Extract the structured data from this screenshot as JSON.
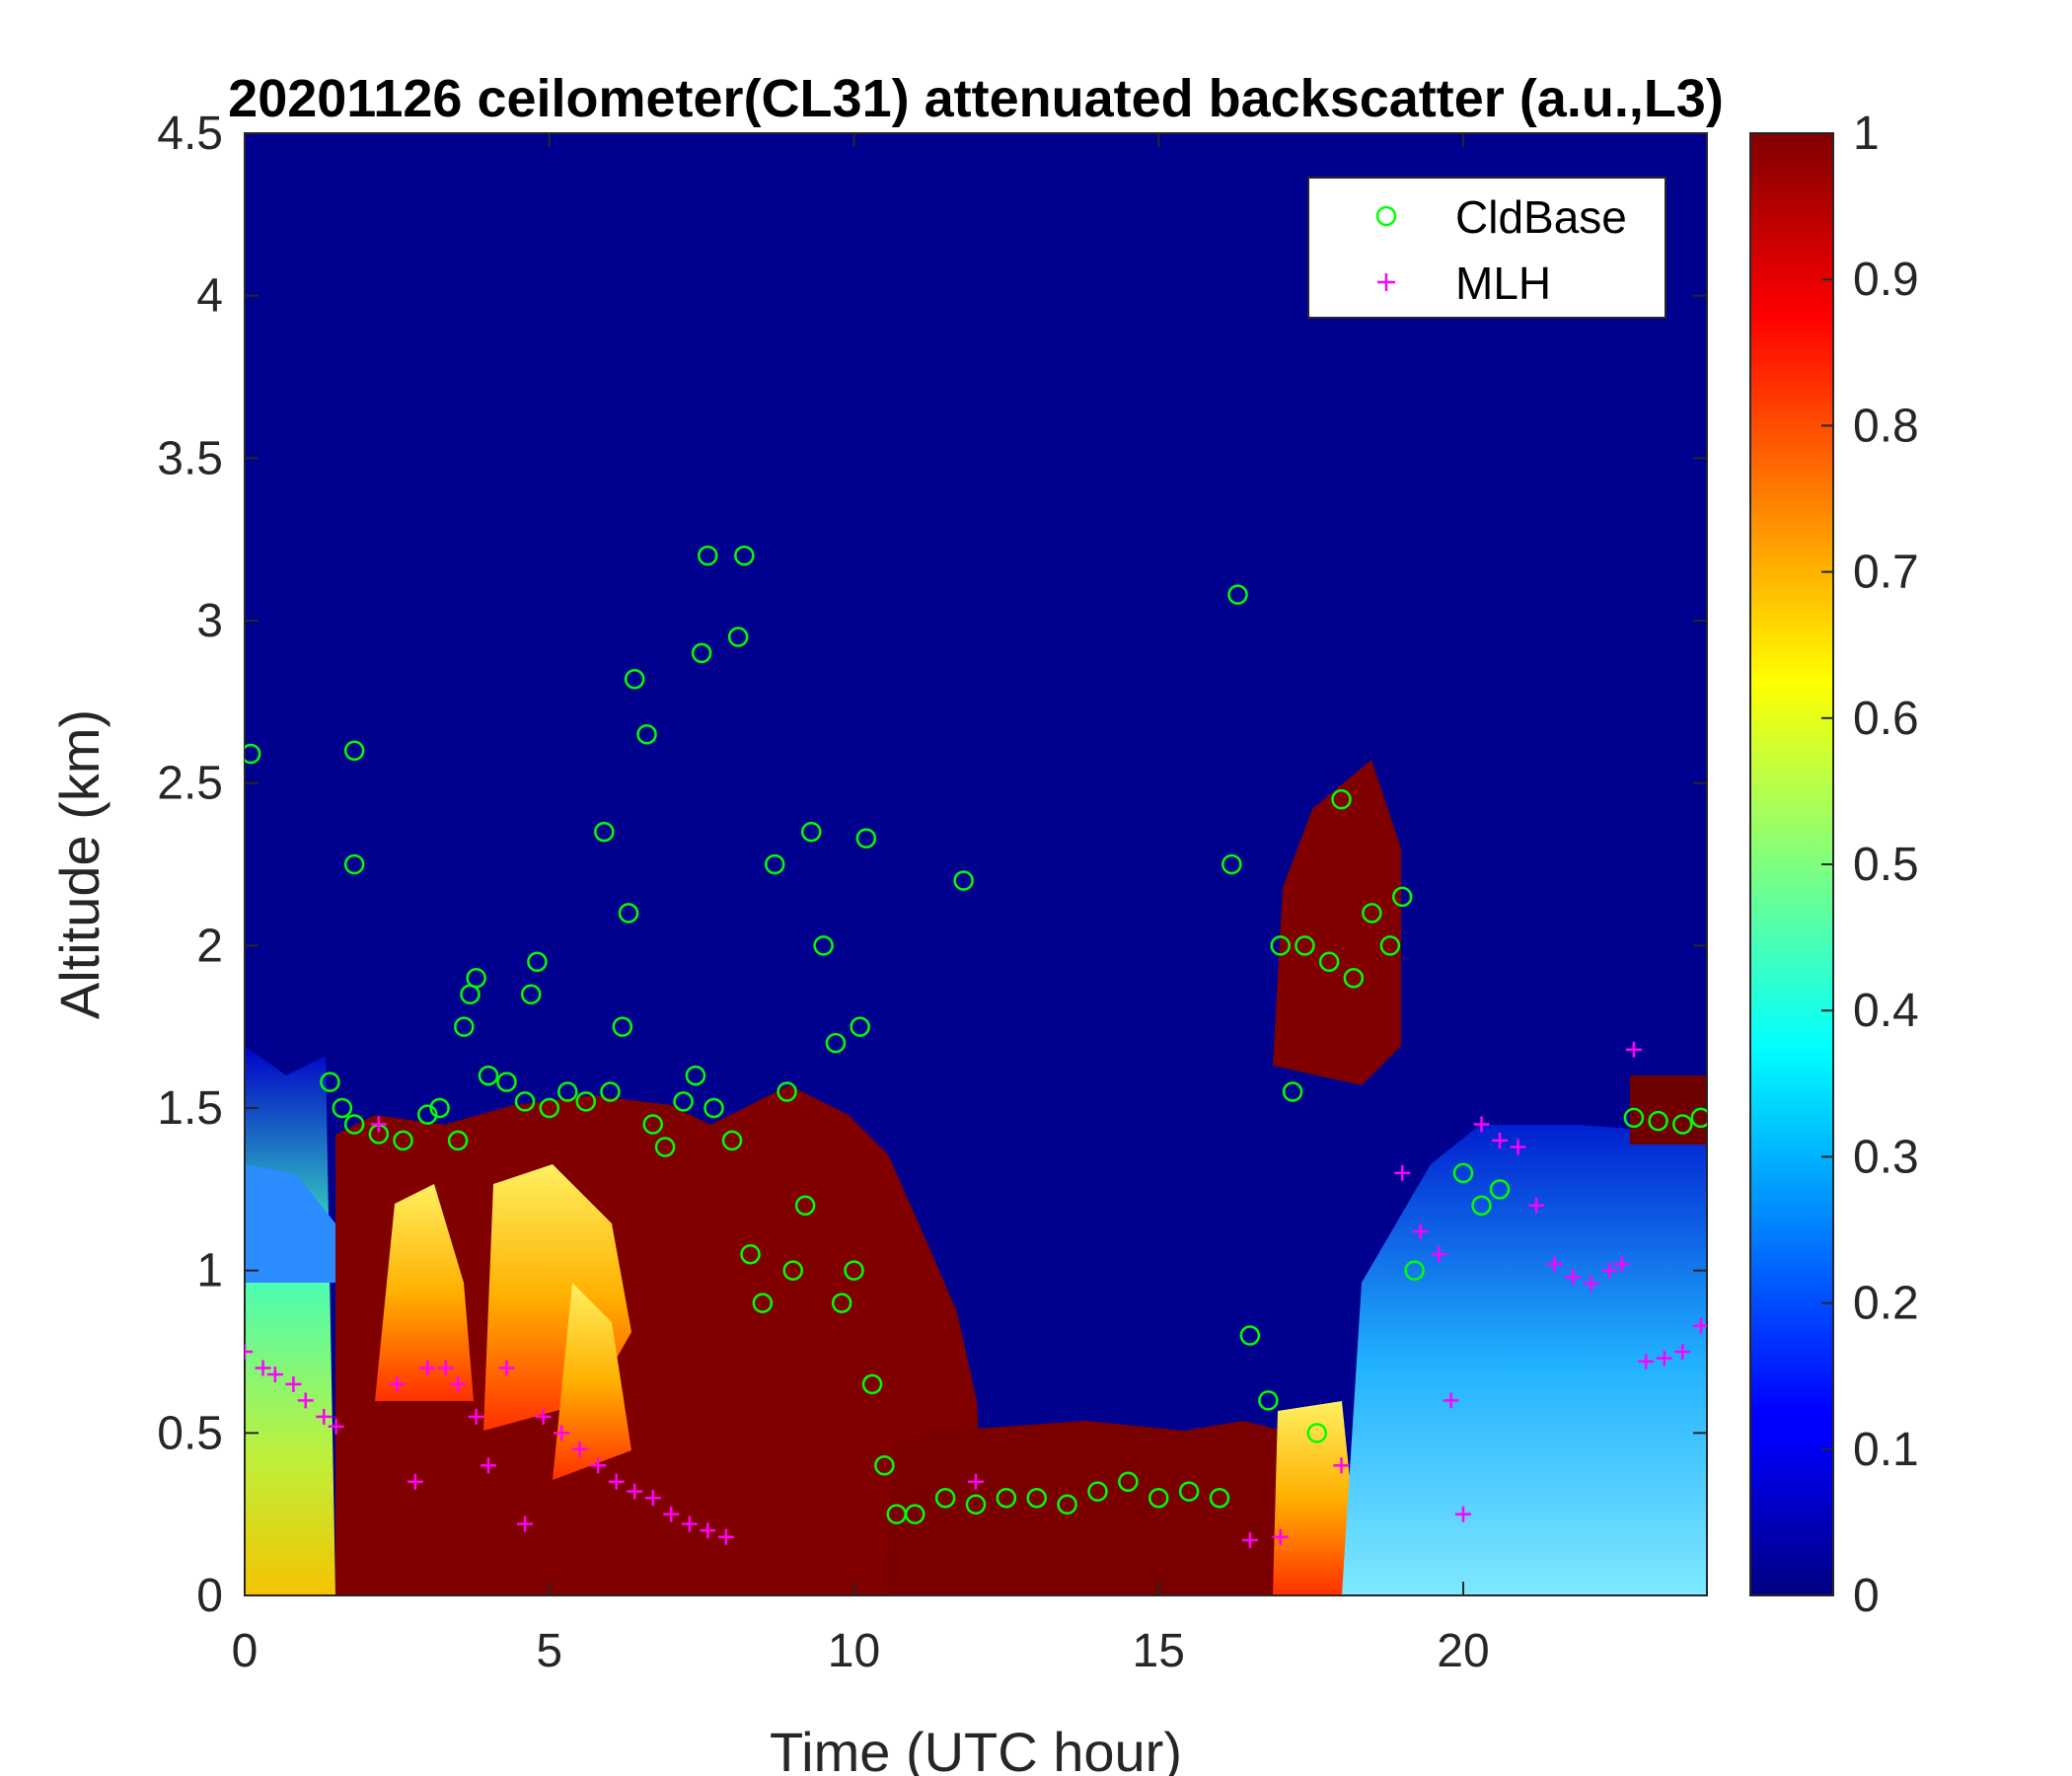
{
  "chart_data": {
    "type": "heatmap",
    "title": "20201126 ceilometer(CL31) attenuated backscatter (a.u.,L3)",
    "xlabel": "Time (UTC hour)",
    "ylabel": "Altitude (km)",
    "xlim": [
      0,
      24
    ],
    "ylim": [
      0,
      4.5
    ],
    "xticks": [
      "0",
      "5",
      "10",
      "15",
      "20"
    ],
    "yticks": [
      "0",
      "0.5",
      "1",
      "1.5",
      "2",
      "2.5",
      "3",
      "3.5",
      "4",
      "4.5"
    ],
    "colorbar": {
      "colormap": "jet",
      "range": [
        0,
        1
      ],
      "ticks": [
        "0",
        "0.1",
        "0.2",
        "0.3",
        "0.4",
        "0.5",
        "0.6",
        "0.7",
        "0.8",
        "0.9",
        "1"
      ]
    },
    "grid": false,
    "legend": {
      "position": "top-right"
    },
    "series": [
      {
        "name": "CldBase",
        "marker": "circle",
        "color": "#00ff00",
        "points": [
          [
            0.1,
            2.59
          ],
          [
            1.4,
            1.58
          ],
          [
            1.6,
            1.5
          ],
          [
            1.8,
            1.45
          ],
          [
            1.8,
            2.6
          ],
          [
            1.8,
            2.25
          ],
          [
            2.2,
            1.42
          ],
          [
            2.6,
            1.4
          ],
          [
            3.0,
            1.48
          ],
          [
            3.2,
            1.5
          ],
          [
            3.5,
            1.4
          ],
          [
            3.6,
            1.75
          ],
          [
            3.7,
            1.85
          ],
          [
            3.8,
            1.9
          ],
          [
            4.0,
            1.6
          ],
          [
            4.3,
            1.58
          ],
          [
            4.6,
            1.52
          ],
          [
            4.7,
            1.85
          ],
          [
            4.8,
            1.95
          ],
          [
            5.0,
            1.5
          ],
          [
            5.3,
            1.55
          ],
          [
            5.6,
            1.52
          ],
          [
            5.9,
            2.35
          ],
          [
            6.0,
            1.55
          ],
          [
            6.2,
            1.75
          ],
          [
            6.3,
            2.1
          ],
          [
            6.4,
            2.82
          ],
          [
            6.6,
            2.65
          ],
          [
            6.7,
            1.45
          ],
          [
            6.9,
            1.38
          ],
          [
            7.2,
            1.52
          ],
          [
            7.4,
            1.6
          ],
          [
            7.5,
            2.9
          ],
          [
            7.6,
            3.2
          ],
          [
            7.7,
            1.5
          ],
          [
            8.0,
            1.4
          ],
          [
            8.1,
            2.95
          ],
          [
            8.2,
            3.2
          ],
          [
            8.3,
            1.05
          ],
          [
            8.5,
            0.9
          ],
          [
            8.7,
            2.25
          ],
          [
            8.9,
            1.55
          ],
          [
            9.0,
            1.0
          ],
          [
            9.2,
            1.2
          ],
          [
            9.3,
            2.35
          ],
          [
            9.5,
            2.0
          ],
          [
            9.7,
            1.7
          ],
          [
            9.8,
            0.9
          ],
          [
            10.0,
            1.0
          ],
          [
            10.1,
            1.75
          ],
          [
            10.2,
            2.33
          ],
          [
            10.3,
            0.65
          ],
          [
            10.5,
            0.4
          ],
          [
            10.7,
            0.25
          ],
          [
            11.0,
            0.25
          ],
          [
            11.5,
            0.3
          ],
          [
            11.8,
            2.2
          ],
          [
            12.0,
            0.28
          ],
          [
            12.5,
            0.3
          ],
          [
            13.0,
            0.3
          ],
          [
            13.5,
            0.28
          ],
          [
            14.0,
            0.32
          ],
          [
            14.5,
            0.35
          ],
          [
            15.0,
            0.3
          ],
          [
            15.5,
            0.32
          ],
          [
            16.0,
            0.3
          ],
          [
            16.2,
            2.25
          ],
          [
            16.3,
            3.08
          ],
          [
            16.5,
            0.8
          ],
          [
            16.8,
            0.6
          ],
          [
            17.0,
            2.0
          ],
          [
            17.2,
            1.55
          ],
          [
            17.4,
            2.0
          ],
          [
            17.6,
            0.5
          ],
          [
            17.8,
            1.95
          ],
          [
            18.0,
            2.45
          ],
          [
            18.2,
            1.9
          ],
          [
            18.5,
            2.1
          ],
          [
            18.8,
            2.0
          ],
          [
            19.0,
            2.15
          ],
          [
            19.2,
            1.0
          ],
          [
            20.0,
            1.3
          ],
          [
            20.3,
            1.2
          ],
          [
            20.6,
            1.25
          ],
          [
            22.8,
            1.47
          ],
          [
            23.2,
            1.46
          ],
          [
            23.6,
            1.45
          ],
          [
            23.9,
            1.47
          ]
        ]
      },
      {
        "name": "MLH",
        "marker": "plus",
        "color": "#ff00ff",
        "points": [
          [
            0.0,
            0.75
          ],
          [
            0.3,
            0.7
          ],
          [
            0.5,
            0.68
          ],
          [
            0.8,
            0.65
          ],
          [
            1.0,
            0.6
          ],
          [
            1.3,
            0.55
          ],
          [
            1.5,
            0.52
          ],
          [
            2.2,
            1.45
          ],
          [
            2.5,
            0.65
          ],
          [
            2.8,
            0.35
          ],
          [
            3.0,
            0.7
          ],
          [
            3.3,
            0.7
          ],
          [
            3.5,
            0.65
          ],
          [
            3.8,
            0.55
          ],
          [
            4.0,
            0.4
          ],
          [
            4.3,
            0.7
          ],
          [
            4.6,
            0.22
          ],
          [
            4.9,
            0.55
          ],
          [
            5.2,
            0.5
          ],
          [
            5.5,
            0.45
          ],
          [
            5.8,
            0.4
          ],
          [
            6.1,
            0.35
          ],
          [
            6.4,
            0.32
          ],
          [
            6.7,
            0.3
          ],
          [
            7.0,
            0.25
          ],
          [
            7.3,
            0.22
          ],
          [
            7.6,
            0.2
          ],
          [
            7.9,
            0.18
          ],
          [
            12.0,
            0.35
          ],
          [
            16.5,
            0.17
          ],
          [
            17.0,
            0.18
          ],
          [
            18.0,
            0.4
          ],
          [
            19.0,
            1.3
          ],
          [
            19.3,
            1.12
          ],
          [
            19.6,
            1.05
          ],
          [
            19.8,
            0.6
          ],
          [
            20.0,
            0.25
          ],
          [
            20.3,
            1.45
          ],
          [
            20.6,
            1.4
          ],
          [
            20.9,
            1.38
          ],
          [
            21.2,
            1.2
          ],
          [
            21.5,
            1.02
          ],
          [
            21.8,
            0.98
          ],
          [
            22.1,
            0.96
          ],
          [
            22.4,
            1.0
          ],
          [
            22.6,
            1.02
          ],
          [
            22.8,
            1.68
          ],
          [
            23.0,
            0.72
          ],
          [
            23.3,
            0.73
          ],
          [
            23.6,
            0.75
          ],
          [
            23.9,
            0.83
          ]
        ]
      }
    ]
  }
}
